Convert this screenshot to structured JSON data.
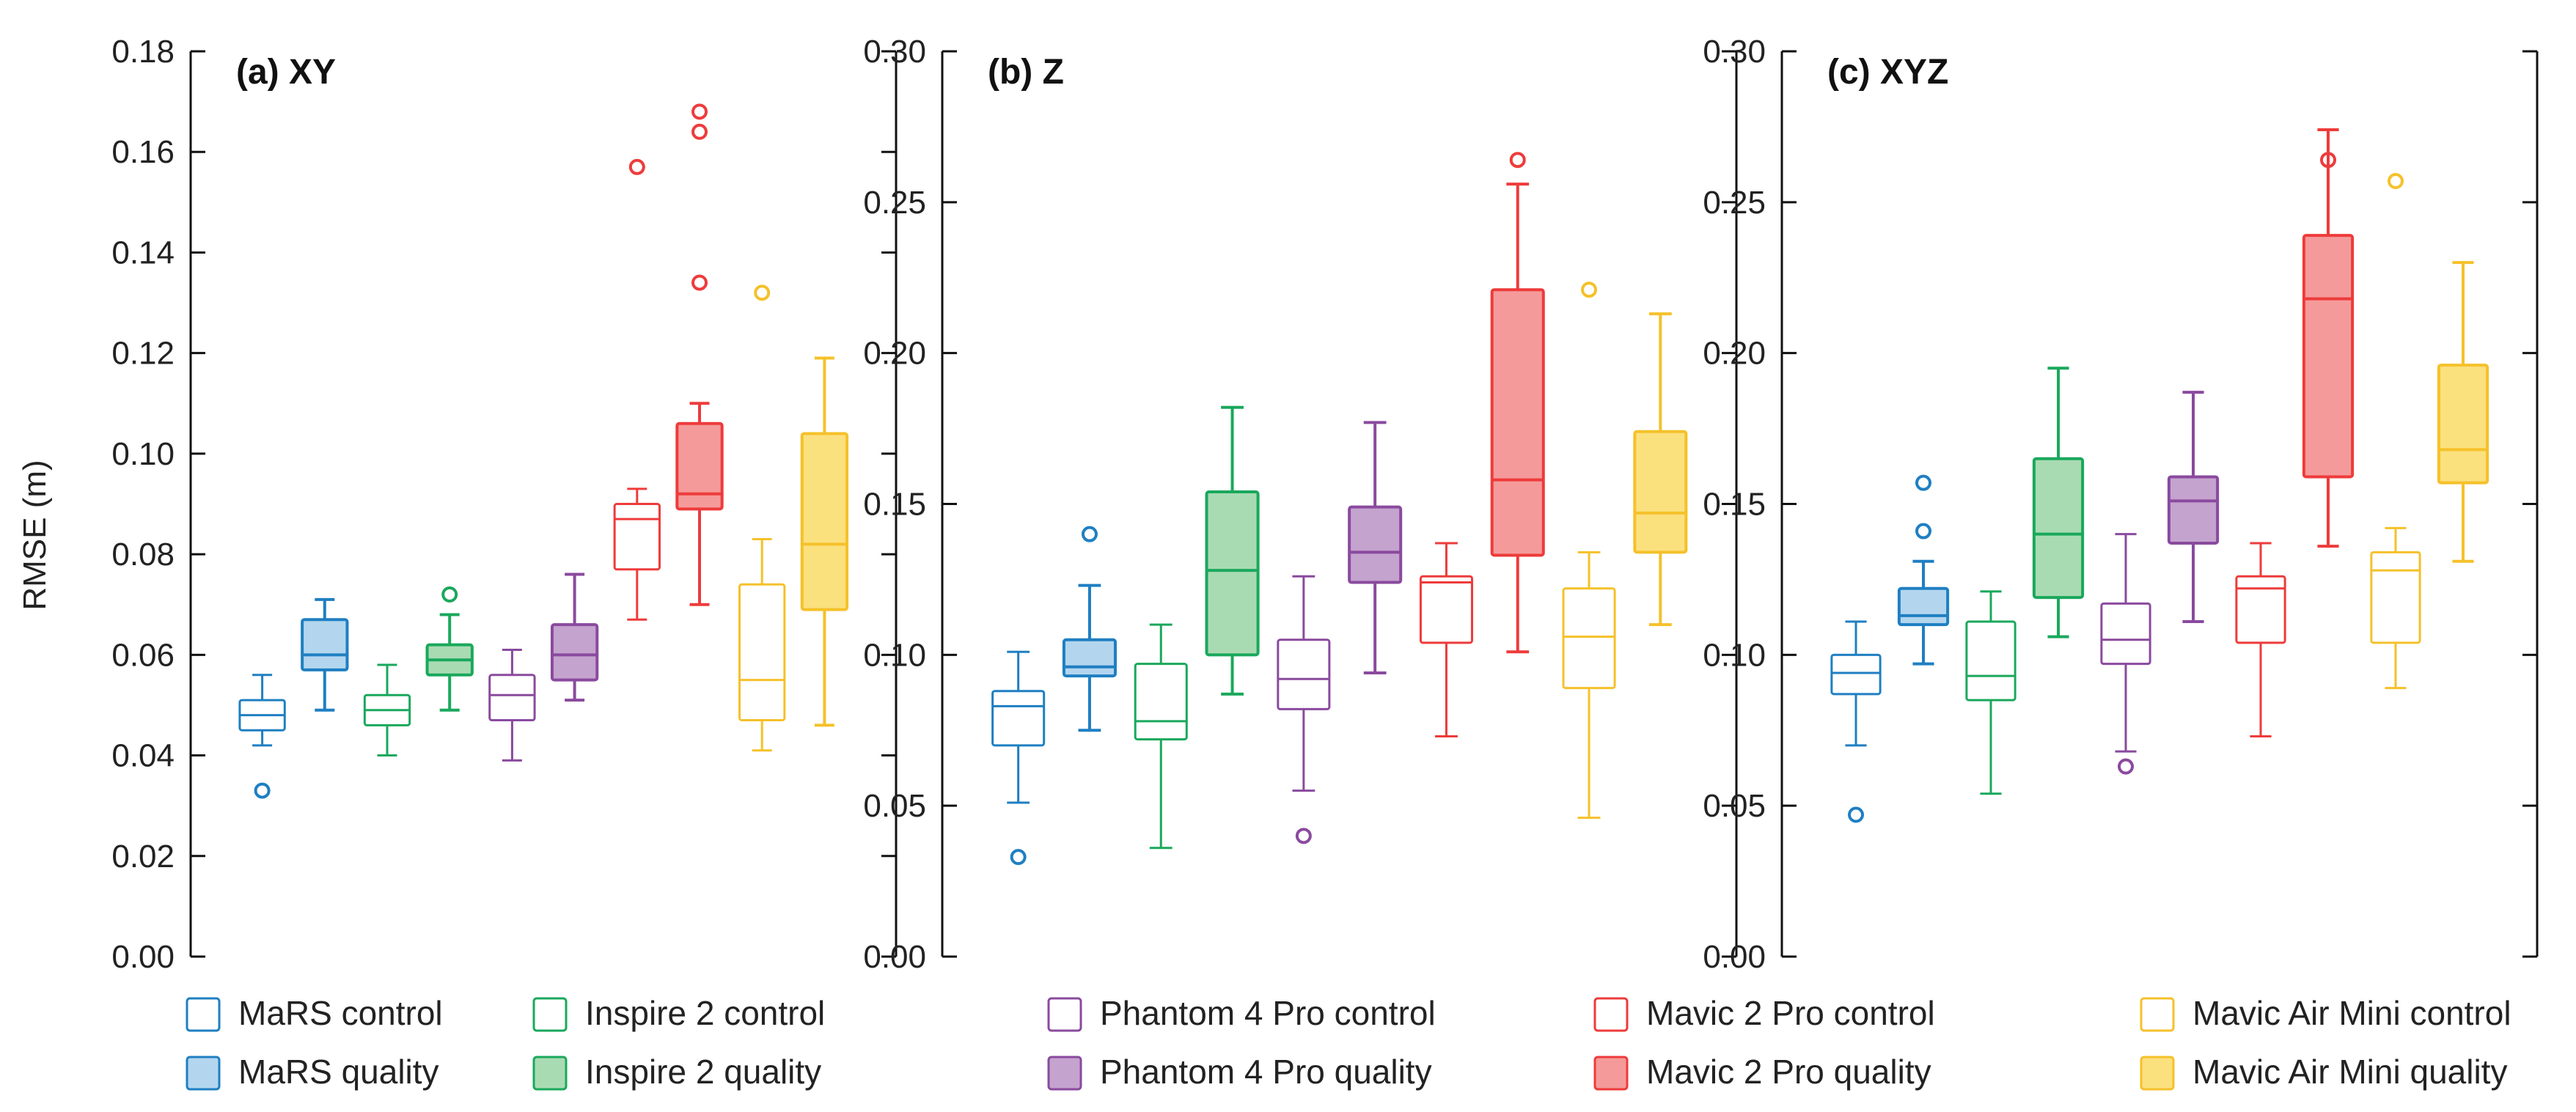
{
  "figure": {
    "ylabel": "RMSE (m)"
  },
  "series": [
    {
      "key": "mars",
      "control_label": "MaRS control",
      "quality_label": "MaRS quality",
      "color": "#1f7fc2",
      "fill": "#b3d6ee"
    },
    {
      "key": "inspire",
      "control_label": "Inspire 2 control",
      "quality_label": "Inspire 2 quality",
      "color": "#1aa85c",
      "fill": "#a9dbb3"
    },
    {
      "key": "phantom",
      "control_label": "Phantom 4 Pro control",
      "quality_label": "Phantom 4 Pro quality",
      "color": "#8a4a9e",
      "fill": "#c4a3ce"
    },
    {
      "key": "mavic2",
      "control_label": "Mavic 2 Pro control",
      "quality_label": "Mavic 2 Pro quality",
      "color": "#ee3b3b",
      "fill": "#f59a9a"
    },
    {
      "key": "mavicair",
      "control_label": "Mavic Air Mini control",
      "quality_label": "Mavic Air Mini quality",
      "color": "#f5c12a",
      "fill": "#fbe07e"
    }
  ],
  "chart_data": [
    {
      "type": "box",
      "title": "(a) XY",
      "ylabel": "RMSE (m)",
      "ylim": [
        0,
        0.18
      ],
      "yticks": [
        "0.00",
        "0.02",
        "0.04",
        "0.06",
        "0.08",
        "0.10",
        "0.12",
        "0.14",
        "0.16",
        "0.18"
      ],
      "tick_values": [
        0,
        0.02,
        0.04,
        0.06,
        0.08,
        0.1,
        0.12,
        0.14,
        0.16,
        0.18
      ],
      "axis_side": "left",
      "boxes": [
        {
          "series": "mars",
          "kind": "control",
          "whislo": 0.042,
          "q1": 0.045,
          "med": 0.048,
          "q3": 0.051,
          "whishi": 0.056,
          "fliers": [
            0.033
          ]
        },
        {
          "series": "mars",
          "kind": "quality",
          "whislo": 0.049,
          "q1": 0.057,
          "med": 0.06,
          "q3": 0.067,
          "whishi": 0.071,
          "fliers": []
        },
        {
          "series": "inspire",
          "kind": "control",
          "whislo": 0.04,
          "q1": 0.046,
          "med": 0.049,
          "q3": 0.052,
          "whishi": 0.058,
          "fliers": []
        },
        {
          "series": "inspire",
          "kind": "quality",
          "whislo": 0.049,
          "q1": 0.056,
          "med": 0.059,
          "q3": 0.062,
          "whishi": 0.068,
          "fliers": [
            0.072
          ]
        },
        {
          "series": "phantom",
          "kind": "control",
          "whislo": 0.039,
          "q1": 0.047,
          "med": 0.052,
          "q3": 0.056,
          "whishi": 0.061,
          "fliers": []
        },
        {
          "series": "phantom",
          "kind": "quality",
          "whislo": 0.051,
          "q1": 0.055,
          "med": 0.06,
          "q3": 0.066,
          "whishi": 0.076,
          "fliers": []
        },
        {
          "series": "mavic2",
          "kind": "control",
          "whislo": 0.067,
          "q1": 0.077,
          "med": 0.087,
          "q3": 0.09,
          "whishi": 0.093,
          "fliers": [
            0.157
          ]
        },
        {
          "series": "mavic2",
          "kind": "quality",
          "whislo": 0.07,
          "q1": 0.089,
          "med": 0.092,
          "q3": 0.106,
          "whishi": 0.11,
          "fliers": [
            0.134,
            0.164,
            0.168
          ]
        },
        {
          "series": "mavicair",
          "kind": "control",
          "whislo": 0.041,
          "q1": 0.047,
          "med": 0.055,
          "q3": 0.074,
          "whishi": 0.083,
          "fliers": [
            0.132
          ]
        },
        {
          "series": "mavicair",
          "kind": "quality",
          "whislo": 0.046,
          "q1": 0.069,
          "med": 0.082,
          "q3": 0.104,
          "whishi": 0.119,
          "fliers": []
        }
      ]
    },
    {
      "type": "box",
      "title": "(b) Z",
      "ylim": [
        0,
        0.3
      ],
      "yticks": [
        "0.00",
        "0.05",
        "0.10",
        "0.15",
        "0.20",
        "0.25",
        "0.30"
      ],
      "tick_values": [
        0,
        0.05,
        0.1,
        0.15,
        0.2,
        0.25,
        0.3
      ],
      "axis_side": "left",
      "boxes": [
        {
          "series": "mars",
          "kind": "control",
          "whislo": 0.051,
          "q1": 0.07,
          "med": 0.083,
          "q3": 0.088,
          "whishi": 0.101,
          "fliers": [
            0.033
          ]
        },
        {
          "series": "mars",
          "kind": "quality",
          "whislo": 0.075,
          "q1": 0.093,
          "med": 0.096,
          "q3": 0.105,
          "whishi": 0.123,
          "fliers": [
            0.14
          ]
        },
        {
          "series": "inspire",
          "kind": "control",
          "whislo": 0.036,
          "q1": 0.072,
          "med": 0.078,
          "q3": 0.097,
          "whishi": 0.11,
          "fliers": []
        },
        {
          "series": "inspire",
          "kind": "quality",
          "whislo": 0.087,
          "q1": 0.1,
          "med": 0.128,
          "q3": 0.154,
          "whishi": 0.182,
          "fliers": []
        },
        {
          "series": "phantom",
          "kind": "control",
          "whislo": 0.055,
          "q1": 0.082,
          "med": 0.092,
          "q3": 0.105,
          "whishi": 0.126,
          "fliers": [
            0.04
          ]
        },
        {
          "series": "phantom",
          "kind": "quality",
          "whislo": 0.094,
          "q1": 0.124,
          "med": 0.134,
          "q3": 0.149,
          "whishi": 0.177,
          "fliers": []
        },
        {
          "series": "mavic2",
          "kind": "control",
          "whislo": 0.073,
          "q1": 0.104,
          "med": 0.124,
          "q3": 0.126,
          "whishi": 0.137,
          "fliers": []
        },
        {
          "series": "mavic2",
          "kind": "quality",
          "whislo": 0.101,
          "q1": 0.133,
          "med": 0.158,
          "q3": 0.221,
          "whishi": 0.256,
          "fliers": [
            0.264
          ]
        },
        {
          "series": "mavicair",
          "kind": "control",
          "whislo": 0.046,
          "q1": 0.089,
          "med": 0.106,
          "q3": 0.122,
          "whishi": 0.134,
          "fliers": [
            0.221
          ]
        },
        {
          "series": "mavicair",
          "kind": "quality",
          "whislo": 0.11,
          "q1": 0.134,
          "med": 0.147,
          "q3": 0.174,
          "whishi": 0.213,
          "fliers": []
        }
      ]
    },
    {
      "type": "box",
      "title": "(c) XYZ",
      "ylim": [
        0,
        0.3
      ],
      "yticks": [
        "0.00",
        "0.05",
        "0.10",
        "0.15",
        "0.20",
        "0.25",
        "0.30"
      ],
      "tick_values": [
        0,
        0.05,
        0.1,
        0.15,
        0.2,
        0.25,
        0.3
      ],
      "axis_side": "left",
      "boxes": [
        {
          "series": "mars",
          "kind": "control",
          "whislo": 0.07,
          "q1": 0.087,
          "med": 0.094,
          "q3": 0.1,
          "whishi": 0.111,
          "fliers": [
            0.047
          ]
        },
        {
          "series": "mars",
          "kind": "quality",
          "whislo": 0.097,
          "q1": 0.11,
          "med": 0.113,
          "q3": 0.122,
          "whishi": 0.131,
          "fliers": [
            0.141,
            0.157
          ]
        },
        {
          "series": "inspire",
          "kind": "control",
          "whislo": 0.054,
          "q1": 0.085,
          "med": 0.093,
          "q3": 0.111,
          "whishi": 0.121,
          "fliers": []
        },
        {
          "series": "inspire",
          "kind": "quality",
          "whislo": 0.106,
          "q1": 0.119,
          "med": 0.14,
          "q3": 0.165,
          "whishi": 0.195,
          "fliers": []
        },
        {
          "series": "phantom",
          "kind": "control",
          "whislo": 0.068,
          "q1": 0.097,
          "med": 0.105,
          "q3": 0.117,
          "whishi": 0.14,
          "fliers": [
            0.063
          ]
        },
        {
          "series": "phantom",
          "kind": "quality",
          "whislo": 0.111,
          "q1": 0.137,
          "med": 0.151,
          "q3": 0.159,
          "whishi": 0.187,
          "fliers": []
        },
        {
          "series": "mavic2",
          "kind": "control",
          "whislo": 0.073,
          "q1": 0.104,
          "med": 0.122,
          "q3": 0.126,
          "whishi": 0.137,
          "fliers": []
        },
        {
          "series": "mavic2",
          "kind": "quality",
          "whislo": 0.136,
          "q1": 0.159,
          "med": 0.218,
          "q3": 0.239,
          "whishi": 0.274,
          "fliers": [
            0.264
          ]
        },
        {
          "series": "mavicair",
          "kind": "control",
          "whislo": 0.089,
          "q1": 0.104,
          "med": 0.128,
          "q3": 0.134,
          "whishi": 0.142,
          "fliers": [
            0.257
          ]
        },
        {
          "series": "mavicair",
          "kind": "quality",
          "whislo": 0.131,
          "q1": 0.157,
          "med": 0.168,
          "q3": 0.196,
          "whishi": 0.23,
          "fliers": []
        }
      ]
    }
  ]
}
